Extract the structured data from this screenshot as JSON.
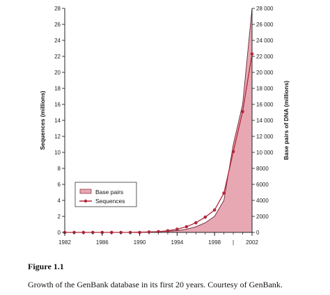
{
  "chart_data": {
    "type": "area",
    "x_tick_labels": [
      "1982",
      "1986",
      "1990",
      "1994",
      "1998",
      "2002"
    ],
    "x_minor_label": "|",
    "xlim": [
      1982,
      2002
    ],
    "left_axis": {
      "label": "Sequences (millions)",
      "ylim": [
        0,
        28
      ],
      "tick_labels": [
        "0",
        "2",
        "4",
        "6",
        "8",
        "10",
        "12",
        "14",
        "16",
        "18",
        "20",
        "22",
        "24",
        "26",
        "28"
      ]
    },
    "right_axis": {
      "label": "Base pairs of DNA (millions)",
      "ylim": [
        0,
        28000
      ],
      "tick_labels": [
        "0",
        "2000",
        "4000",
        "6000",
        "8000",
        "10 000",
        "12 000",
        "14 000",
        "16 000",
        "18 000",
        "20 000",
        "22 000",
        "24 000",
        "26 000",
        "28 000"
      ]
    },
    "series": [
      {
        "name": "Base pairs",
        "style": "area",
        "axis": "right",
        "color": "#e7a8b3",
        "x": [
          1982,
          1983,
          1984,
          1985,
          1986,
          1987,
          1988,
          1989,
          1990,
          1991,
          1992,
          1993,
          1994,
          1995,
          1996,
          1997,
          1998,
          1999,
          2000,
          2001,
          2002
        ],
        "values": [
          0,
          0,
          0,
          0,
          0,
          0,
          0,
          0,
          50,
          70,
          100,
          150,
          220,
          400,
          700,
          1200,
          2000,
          4000,
          11000,
          16000,
          28000
        ]
      },
      {
        "name": "Sequences",
        "style": "line-markers",
        "axis": "left",
        "color": "#b1283a",
        "x": [
          1982,
          1983,
          1984,
          1985,
          1986,
          1987,
          1988,
          1989,
          1990,
          1991,
          1992,
          1993,
          1994,
          1995,
          1996,
          1997,
          1998,
          1999,
          2000,
          2001,
          2002
        ],
        "values": [
          0,
          0,
          0,
          0,
          0,
          0,
          0,
          0,
          0,
          0.05,
          0.1,
          0.2,
          0.4,
          0.7,
          1.2,
          1.9,
          2.8,
          4.9,
          10.1,
          15.1,
          22.3
        ]
      }
    ],
    "legend_position": "center-left",
    "grid": false
  },
  "caption": {
    "label": "Figure 1.1",
    "text": "Growth of the GenBank database in its first 20 years. Courtesy of GenBank."
  }
}
